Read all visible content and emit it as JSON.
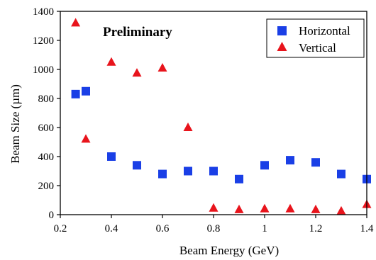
{
  "chart_data": {
    "type": "scatter",
    "annotation": "Preliminary",
    "xlabel": "Beam Energy (GeV)",
    "ylabel": "Beam Size (µm)",
    "xlim": [
      0.2,
      1.4
    ],
    "ylim": [
      0,
      1400
    ],
    "xticks": [
      0.2,
      0.4,
      0.6,
      0.8,
      1.0,
      1.2,
      1.4
    ],
    "xtick_labels": [
      "0.2",
      "0.4",
      "0.6",
      "0.8",
      "1",
      "1.2",
      "1.4"
    ],
    "yticks": [
      0,
      200,
      400,
      600,
      800,
      1000,
      1200,
      1400
    ],
    "ytick_labels": [
      "0",
      "200",
      "400",
      "600",
      "800",
      "1000",
      "1200",
      "1400"
    ],
    "grid": false,
    "legend_position": "top-right",
    "series": [
      {
        "name": "Horizontal",
        "marker": "square",
        "color": "#1a3fe6",
        "x": [
          0.26,
          0.3,
          0.4,
          0.5,
          0.6,
          0.7,
          0.8,
          0.9,
          1.0,
          1.1,
          1.2,
          1.3,
          1.4
        ],
        "y": [
          830,
          850,
          400,
          340,
          280,
          300,
          300,
          245,
          340,
          375,
          360,
          280,
          245
        ]
      },
      {
        "name": "Vertical",
        "marker": "triangle",
        "color": "#e8141c",
        "x": [
          0.26,
          0.3,
          0.4,
          0.5,
          0.6,
          0.7,
          0.8,
          0.9,
          1.0,
          1.1,
          1.2,
          1.3,
          1.4
        ],
        "y": [
          1320,
          520,
          1050,
          975,
          1010,
          600,
          45,
          35,
          40,
          40,
          35,
          25,
          70
        ]
      }
    ]
  }
}
